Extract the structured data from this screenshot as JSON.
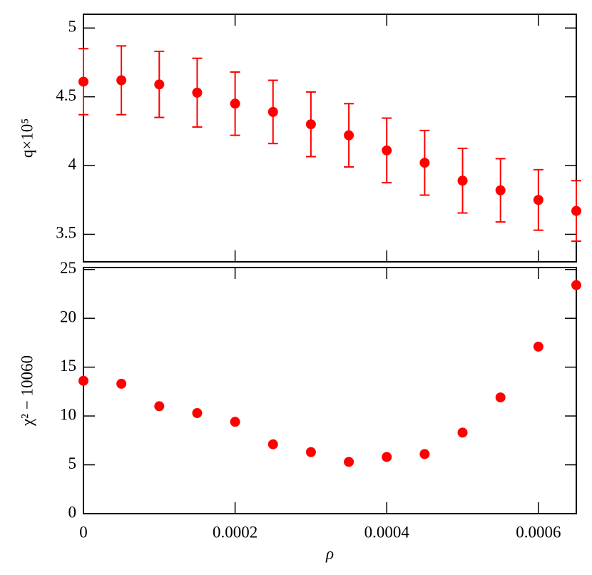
{
  "chart_data": [
    {
      "type": "errorbar",
      "y_label": "q×10⁵",
      "x": [
        0,
        5e-05,
        0.0001,
        0.00015,
        0.0002,
        0.00025,
        0.0003,
        0.00035,
        0.0004,
        0.00045,
        0.0005,
        0.00055,
        0.0006,
        0.00065
      ],
      "series": [
        {
          "color": "#ff0000",
          "values": [
            4.61,
            4.62,
            4.59,
            4.53,
            4.45,
            4.39,
            4.3,
            4.22,
            4.11,
            4.02,
            3.89,
            3.82,
            3.75,
            3.67
          ],
          "errors": [
            0.24,
            0.25,
            0.24,
            0.25,
            0.23,
            0.23,
            0.235,
            0.23,
            0.235,
            0.235,
            0.235,
            0.23,
            0.22,
            0.22
          ]
        }
      ],
      "xlim": [
        0,
        0.00065
      ],
      "xticks": [
        0,
        0.0002,
        0.0004,
        0.0006
      ],
      "ylim": [
        3.3,
        5.1
      ],
      "yticks": [
        3.5,
        4,
        4.5,
        5
      ]
    },
    {
      "type": "scatter",
      "x_label": "ρ",
      "y_label": "χ² − 10060",
      "x": [
        0,
        5e-05,
        0.0001,
        0.00015,
        0.0002,
        0.00025,
        0.0003,
        0.00035,
        0.0004,
        0.00045,
        0.0005,
        0.00055,
        0.0006,
        0.00065
      ],
      "series": [
        {
          "color": "#ff0000",
          "values": [
            13.6,
            13.3,
            11.0,
            10.3,
            9.4,
            7.1,
            6.3,
            5.3,
            5.8,
            6.1,
            8.3,
            11.9,
            17.1,
            23.4
          ]
        }
      ],
      "xlim": [
        0,
        0.00065
      ],
      "xticks": [
        0,
        0.0002,
        0.0004,
        0.0006
      ],
      "ylim": [
        0,
        25.2
      ],
      "yticks": [
        0,
        5,
        10,
        15,
        20,
        25
      ]
    }
  ]
}
